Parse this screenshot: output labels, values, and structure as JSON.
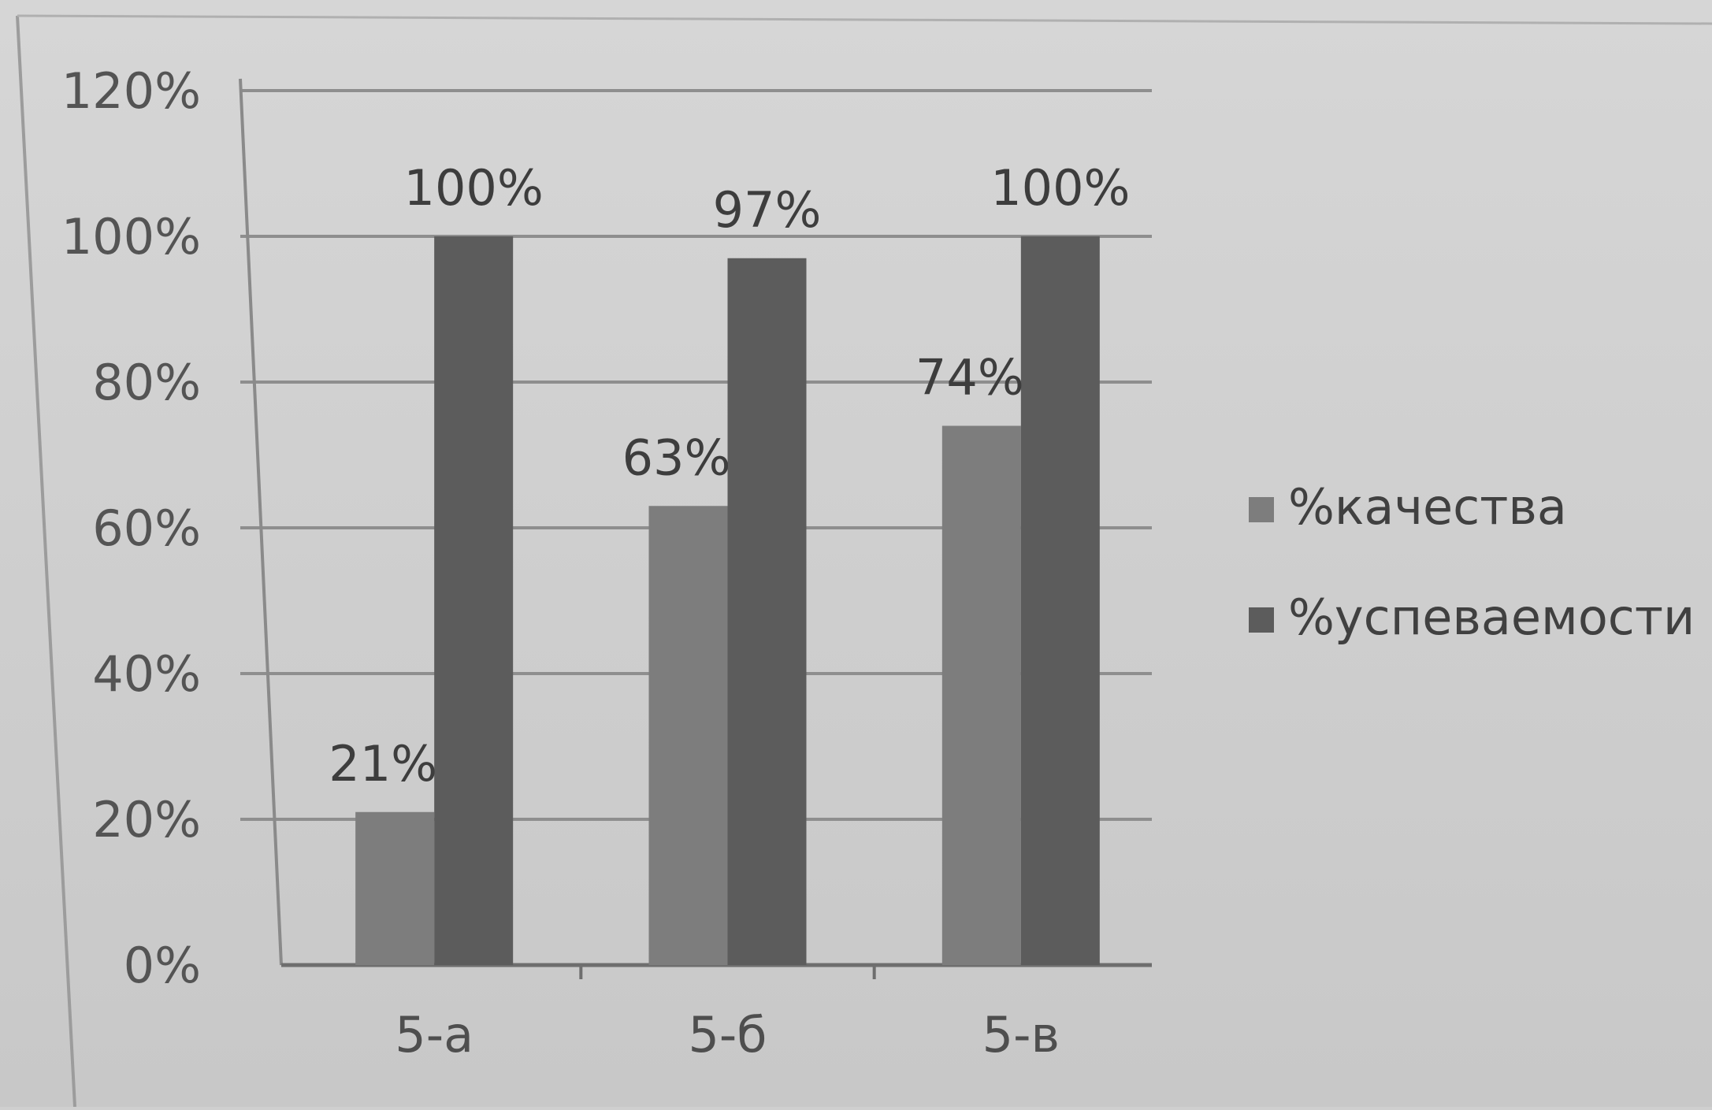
{
  "chart_data": {
    "type": "bar",
    "categories": [
      "5-а",
      "5-б",
      "5-в"
    ],
    "series": [
      {
        "name": "%качества",
        "values": [
          21,
          63,
          74
        ],
        "labels": [
          "21%",
          "63%",
          "74%"
        ],
        "color": "#7d7d7d"
      },
      {
        "name": "%успеваемости",
        "values": [
          100,
          97,
          100
        ],
        "labels": [
          "100%",
          "97%",
          "100%"
        ],
        "color": "#5c5c5c"
      }
    ],
    "ylim": [
      0,
      120
    ],
    "yticks": [
      0,
      20,
      40,
      60,
      80,
      100,
      120
    ],
    "ytick_labels": [
      "0%",
      "20%",
      "40%",
      "60%",
      "80%",
      "100%",
      "120%"
    ],
    "grid": true,
    "legend_position": "right",
    "title": "",
    "xlabel": "",
    "ylabel": ""
  }
}
